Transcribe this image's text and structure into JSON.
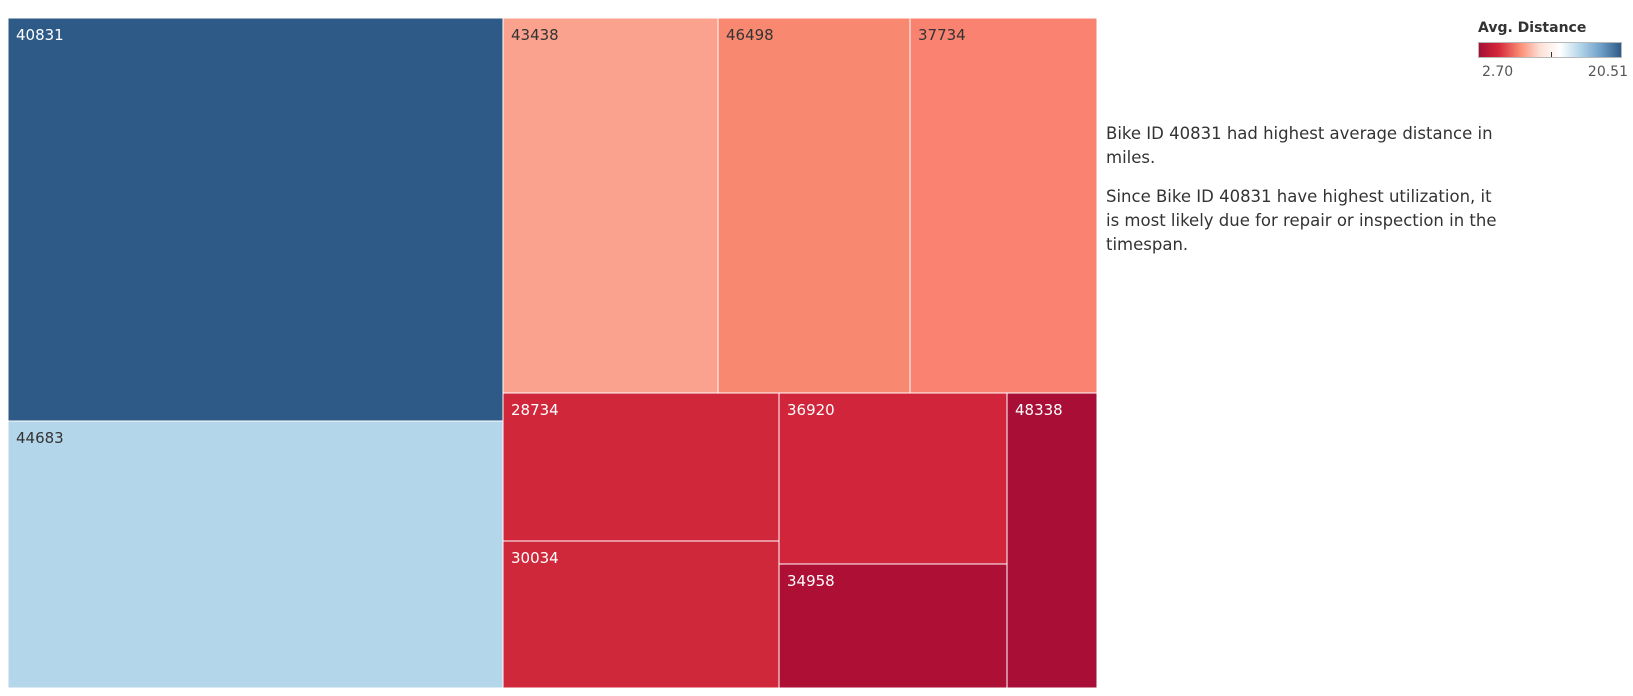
{
  "chart_data": {
    "type": "treemap",
    "legend": {
      "title": "Avg. Distance",
      "min_label": "2.70",
      "max_label": "20.51",
      "min": 2.7,
      "max": 20.51,
      "colors": [
        "#a50f34",
        "#d6283b",
        "#f98e74",
        "#fde0d6",
        "#ffffff",
        "#b4d6ea",
        "#6d9ec7",
        "#2e5a87"
      ]
    },
    "items": [
      {
        "id": "40831",
        "color": "#2e5a87"
      },
      {
        "id": "44683",
        "color": "#b4d6ea"
      },
      {
        "id": "43438",
        "color": "#fba28e"
      },
      {
        "id": "46498",
        "color": "#f98870"
      },
      {
        "id": "37734",
        "color": "#f98370"
      },
      {
        "id": "28734",
        "color": "#d0273b"
      },
      {
        "id": "30034",
        "color": "#d0283b"
      },
      {
        "id": "36920",
        "color": "#d0253b"
      },
      {
        "id": "34958",
        "color": "#ad0f35"
      },
      {
        "id": "48338",
        "color": "#a80e36"
      }
    ]
  },
  "annotations": [
    "Bike ID 40831 had highest average distance in miles.",
    "Since Bike ID 40831 have highest utilization, it is most likely due for repair or inspection in the timespan."
  ]
}
